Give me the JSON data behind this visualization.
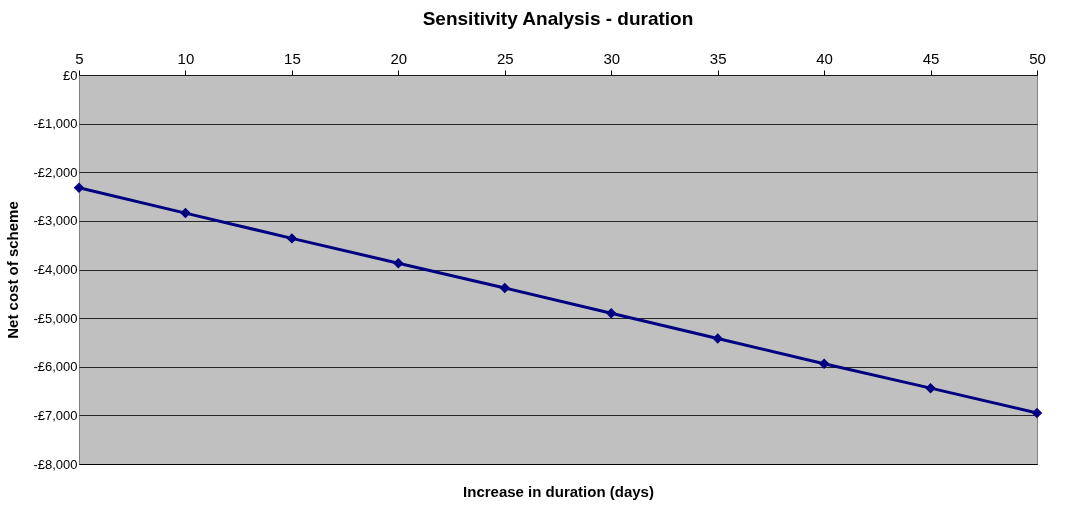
{
  "chart_data": {
    "type": "line",
    "title": "Sensitivity Analysis - duration",
    "xlabel": "Increase in duration (days)",
    "ylabel": "Net cost of scheme",
    "x": [
      5,
      10,
      15,
      20,
      25,
      30,
      35,
      40,
      45,
      50
    ],
    "series": [
      {
        "color": "#000080",
        "values": [
          -2320,
          -2840,
          -3360,
          -3870,
          -4380,
          -4900,
          -5420,
          -5940,
          -6440,
          -6950
        ]
      }
    ],
    "xlim": [
      5,
      50
    ],
    "xticks": [
      5,
      10,
      15,
      20,
      25,
      30,
      35,
      40,
      45,
      50
    ],
    "ylim": [
      -8000,
      0
    ],
    "yticks": [
      {
        "value": 0,
        "label": "£0"
      },
      {
        "value": -1000,
        "label": "-£1,000"
      },
      {
        "value": -2000,
        "label": "-£2,000"
      },
      {
        "value": -3000,
        "label": "-£3,000"
      },
      {
        "value": -4000,
        "label": "-£4,000"
      },
      {
        "value": -5000,
        "label": "-£5,000"
      },
      {
        "value": -6000,
        "label": "-£6,000"
      },
      {
        "value": -7000,
        "label": "-£7,000"
      },
      {
        "value": -8000,
        "label": "-£8,000"
      }
    ],
    "grid": "y",
    "marker": "diamond",
    "line_style": "solid"
  }
}
